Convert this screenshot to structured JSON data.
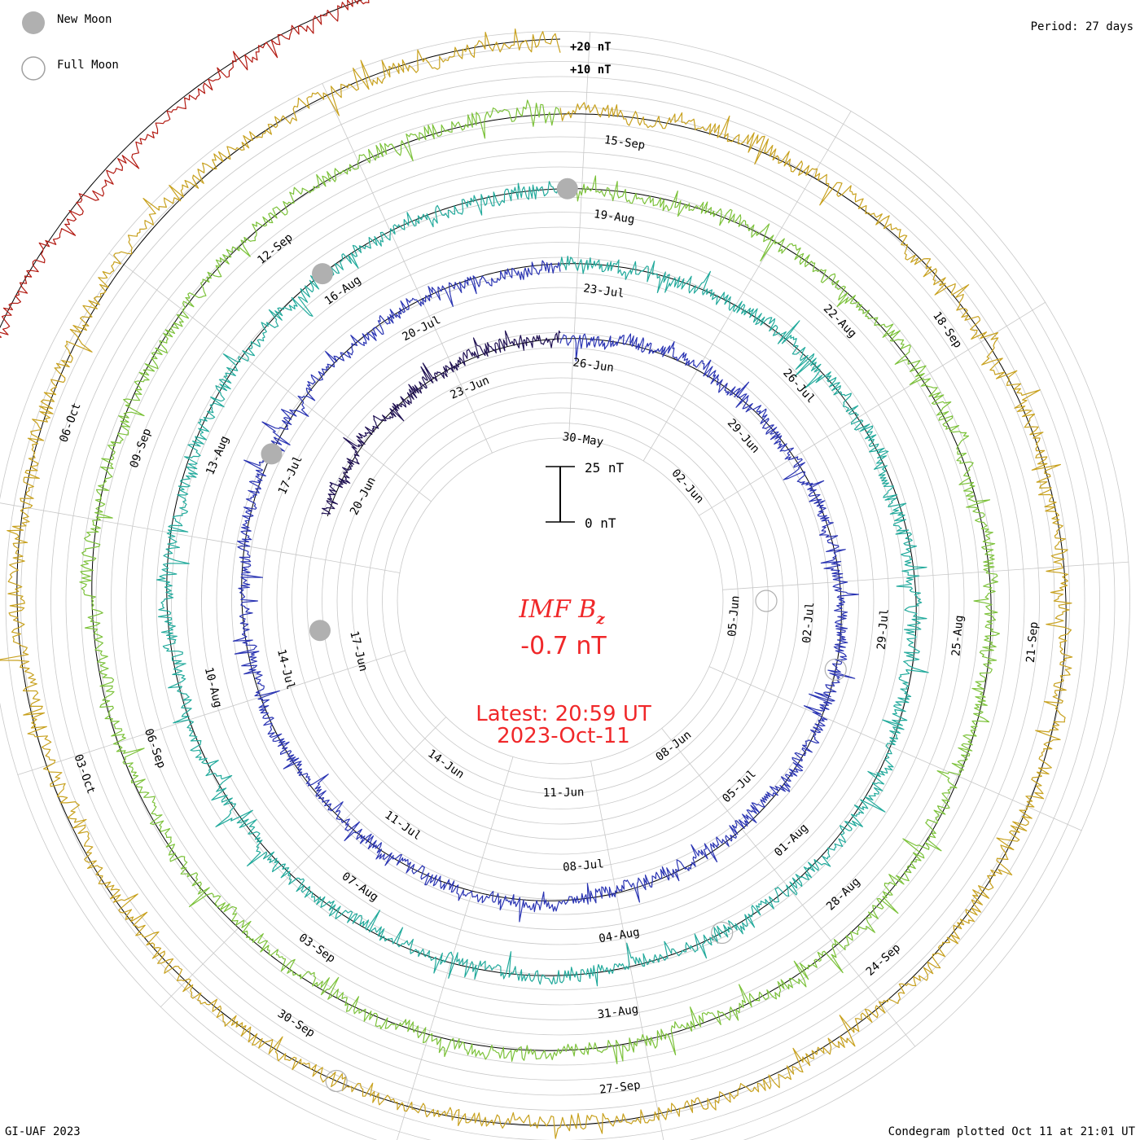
{
  "chart_data": {
    "type": "line",
    "subtype": "spiral-condegram",
    "title": "IMF Bz",
    "title_main": "IMF B",
    "title_sub": "z",
    "current_value": "-0.7 nT",
    "latest_line1": "Latest: 20:59 UT",
    "latest_line2": "2023-Oct-11",
    "period_label": "Period: 27 days",
    "plotted_label": "Condegram plotted Oct 11 at 21:01 UT",
    "credit": "GI-UAF 2023",
    "scale_bar": {
      "top_label": "25 nT",
      "bottom_label": "0 nT",
      "span_nT": 25
    },
    "ring_labels": [
      "+20 nT",
      "+10 nT"
    ],
    "legend": [
      {
        "label": "New Moon",
        "style": "filled"
      },
      {
        "label": "Full Moon",
        "style": "open"
      }
    ],
    "units": "nT",
    "period_days": 27,
    "turns": [
      {
        "color": "#1e0f52",
        "amp": 8,
        "seed": 1,
        "date_labels": [
          {
            "text": "30-May",
            "angle": 8
          },
          {
            "text": "02-Jun",
            "angle": 48
          },
          {
            "text": "05-Jun",
            "angle": 95
          },
          {
            "text": "08-Jun",
            "angle": 142
          },
          {
            "text": "11-Jun",
            "angle": 179
          },
          {
            "text": "14-Jun",
            "angle": 215
          },
          {
            "text": "17-Jun",
            "angle": 256
          },
          {
            "text": "20-Jun",
            "angle": 298
          },
          {
            "text": "23-Jun",
            "angle": 337
          }
        ]
      },
      {
        "color": "#2a34b3",
        "amp": 8,
        "seed": 2,
        "date_labels": [
          {
            "text": "26-Jun",
            "angle": 8
          },
          {
            "text": "29-Jun",
            "angle": 48
          },
          {
            "text": "02-Jul",
            "angle": 95
          },
          {
            "text": "05-Jul",
            "angle": 136
          },
          {
            "text": "08-Jul",
            "angle": 175
          },
          {
            "text": "11-Jul",
            "angle": 215
          },
          {
            "text": "14-Jul",
            "angle": 256
          },
          {
            "text": "17-Jul",
            "angle": 295
          },
          {
            "text": "20-Jul",
            "angle": 333
          }
        ]
      },
      {
        "color": "#22aa9c",
        "amp": 9,
        "seed": 3,
        "date_labels": [
          {
            "text": "23-Jul",
            "angle": 8
          },
          {
            "text": "26-Jul",
            "angle": 48
          },
          {
            "text": "29-Jul",
            "angle": 95
          },
          {
            "text": "01-Aug",
            "angle": 136
          },
          {
            "text": "04-Aug",
            "angle": 170
          },
          {
            "text": "07-Aug",
            "angle": 215
          },
          {
            "text": "10-Aug",
            "angle": 256
          },
          {
            "text": "13-Aug",
            "angle": 293
          },
          {
            "text": "16-Aug",
            "angle": 325
          }
        ]
      },
      {
        "color": "#7cc23a",
        "amp": 9,
        "seed": 4,
        "date_labels": [
          {
            "text": "19-Aug",
            "angle": 8
          },
          {
            "text": "22-Aug",
            "angle": 45
          },
          {
            "text": "25-Aug",
            "angle": 95
          },
          {
            "text": "28-Aug",
            "angle": 136
          },
          {
            "text": "31-Aug",
            "angle": 172
          },
          {
            "text": "03-Sep",
            "angle": 215
          },
          {
            "text": "06-Sep",
            "angle": 250
          },
          {
            "text": "09-Sep",
            "angle": 290
          },
          {
            "text": "12-Sep",
            "angle": 321
          }
        ]
      },
      {
        "color": "#c8a11e",
        "amp": 10,
        "seed": 5,
        "date_labels": [
          {
            "text": "15-Sep",
            "angle": 8
          },
          {
            "text": "18-Sep",
            "angle": 55
          },
          {
            "text": "21-Sep",
            "angle": 95
          },
          {
            "text": "24-Sep",
            "angle": 138
          },
          {
            "text": "27-Sep",
            "angle": 173
          },
          {
            "text": "30-Sep",
            "angle": 212
          },
          {
            "text": "03-Oct",
            "angle": 250
          },
          {
            "text": "06-Oct",
            "angle": 290
          }
        ]
      },
      {
        "color": "#b31a12",
        "amp": 8,
        "seed": 6,
        "date_labels": []
      }
    ],
    "new_moon_markers": [
      {
        "turn": 0,
        "angle": 263
      },
      {
        "turn": 1,
        "angle": 297
      },
      {
        "turn": 2,
        "angle": 324
      },
      {
        "turn": 3,
        "angle": 1
      }
    ],
    "full_moon_markers": [
      {
        "turn": 0,
        "angle": 90
      },
      {
        "turn": 1,
        "angle": 104
      },
      {
        "turn": 2,
        "angle": 154
      },
      {
        "turn": 4,
        "angle": 205
      }
    ]
  }
}
